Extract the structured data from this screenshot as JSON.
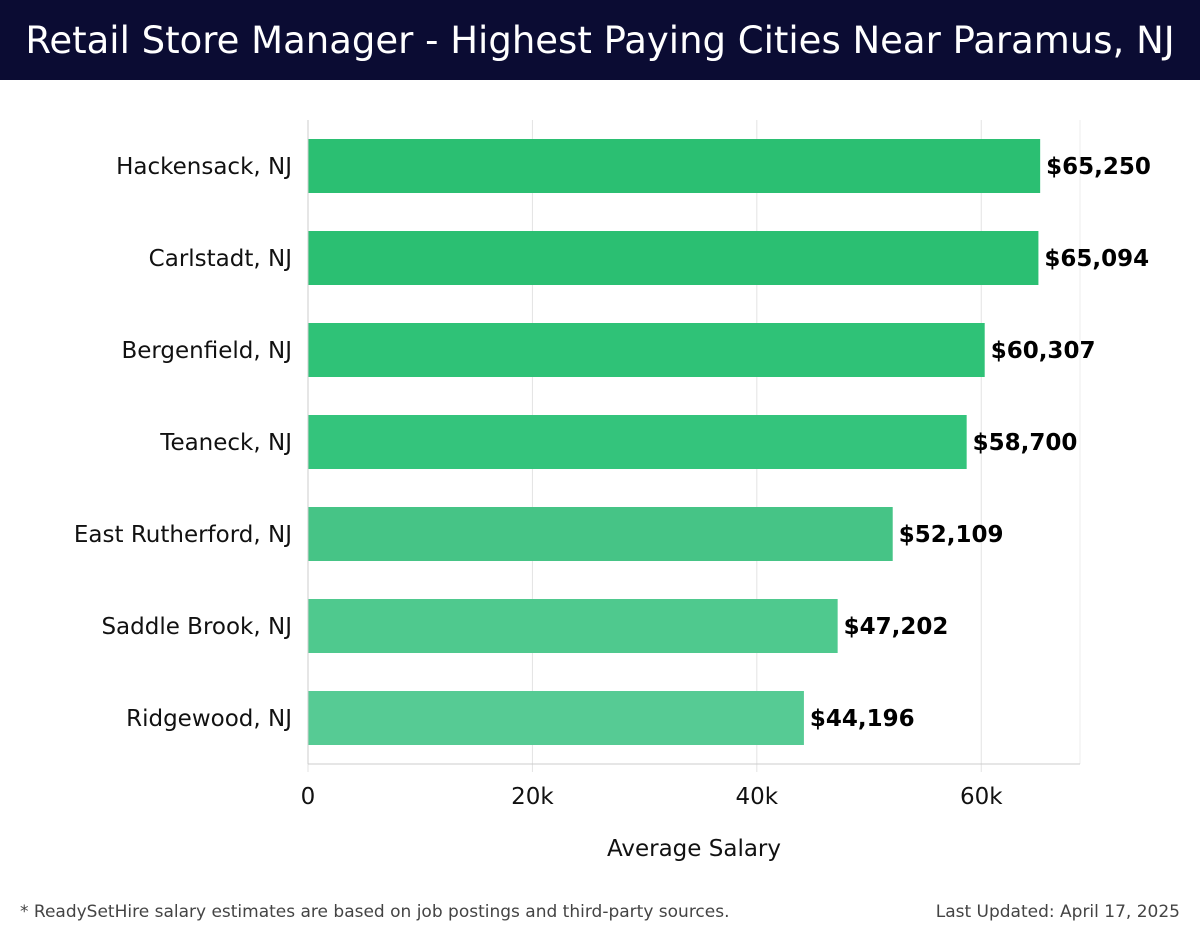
{
  "header": {
    "title": "Retail Store Manager - Highest Paying Cities Near Paramus, NJ"
  },
  "chart_data": {
    "type": "bar",
    "orientation": "horizontal",
    "title": "Retail Store Manager - Highest Paying Cities Near Paramus, NJ",
    "xlabel": "Average Salary",
    "ylabel": "",
    "xlim": [
      0,
      68800
    ],
    "x_ticks": [
      0,
      20000,
      40000,
      60000
    ],
    "x_tick_labels": [
      "0",
      "20k",
      "40k",
      "60k"
    ],
    "grid": "vertical",
    "categories": [
      "Hackensack, NJ",
      "Carlstadt, NJ",
      "Bergenfield, NJ",
      "Teaneck, NJ",
      "East Rutherford, NJ",
      "Saddle Brook, NJ",
      "Ridgewood, NJ"
    ],
    "values": [
      65250,
      65094,
      60307,
      58700,
      52109,
      47202,
      44196
    ],
    "value_labels": [
      "$65,250",
      "$65,094",
      "$60,307",
      "$58,700",
      "$52,109",
      "$47,202",
      "$44,196"
    ],
    "colors": [
      "#2bbf72",
      "#2bbf72",
      "#2fc277",
      "#34c47c",
      "#46c486",
      "#4fc98e",
      "#56cb94"
    ]
  },
  "footer": {
    "note": "* ReadySetHire salary estimates are based on job postings and third-party sources.",
    "updated": "Last Updated: April 17, 2025"
  }
}
